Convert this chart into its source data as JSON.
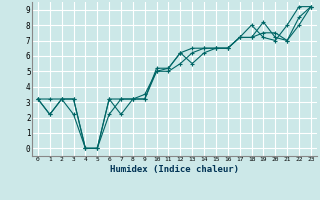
{
  "title": "",
  "xlabel": "Humidex (Indice chaleur)",
  "background_color": "#cce8e8",
  "grid_color": "#ffffff",
  "line_color": "#006666",
  "xlim": [
    -0.5,
    23.5
  ],
  "ylim": [
    -0.5,
    9.5
  ],
  "xticks": [
    0,
    1,
    2,
    3,
    4,
    5,
    6,
    7,
    8,
    9,
    10,
    11,
    12,
    13,
    14,
    15,
    16,
    17,
    18,
    19,
    20,
    21,
    22,
    23
  ],
  "yticks": [
    0,
    1,
    2,
    3,
    4,
    5,
    6,
    7,
    8,
    9
  ],
  "series": [
    [
      3.2,
      2.2,
      3.2,
      3.2,
      0.0,
      0.0,
      3.2,
      2.2,
      3.2,
      3.2,
      5.0,
      5.2,
      6.2,
      5.5,
      6.2,
      6.5,
      6.5,
      7.2,
      8.0,
      7.2,
      7.0,
      8.0,
      9.2,
      9.2
    ],
    [
      3.2,
      2.2,
      3.2,
      3.2,
      0.0,
      0.0,
      2.2,
      3.2,
      3.2,
      3.5,
      5.0,
      5.0,
      5.5,
      6.2,
      6.5,
      6.5,
      6.5,
      7.2,
      7.2,
      8.2,
      7.2,
      7.0,
      8.0,
      9.2
    ],
    [
      3.2,
      3.2,
      3.2,
      2.2,
      0.0,
      0.0,
      3.2,
      3.2,
      3.2,
      3.2,
      5.2,
      5.2,
      6.2,
      6.5,
      6.5,
      6.5,
      6.5,
      7.2,
      7.2,
      7.5,
      7.5,
      7.0,
      8.5,
      9.2
    ]
  ]
}
